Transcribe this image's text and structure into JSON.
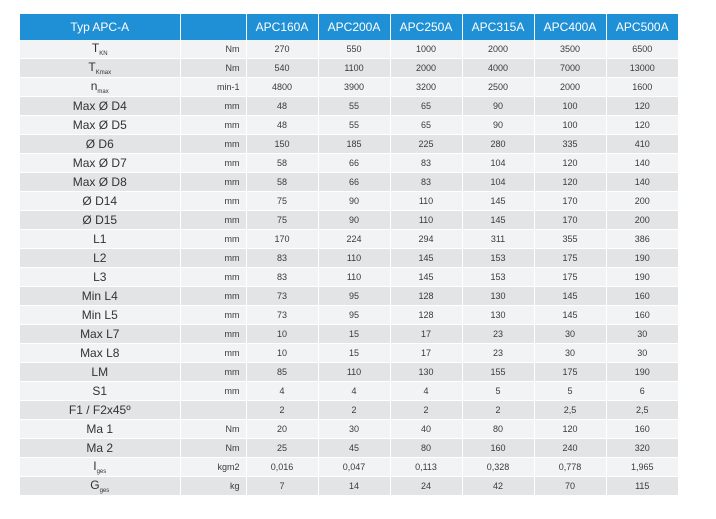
{
  "table": {
    "header": {
      "label": "Typ APC-A",
      "models": [
        "APC160A",
        "APC200A",
        "APC250A",
        "APC315A",
        "APC400A",
        "APC500A"
      ]
    },
    "rows": [
      {
        "main": "T",
        "sub": "KN",
        "unit": "Nm",
        "values": [
          "270",
          "550",
          "1000",
          "2000",
          "3500",
          "6500"
        ]
      },
      {
        "main": "T",
        "sub": "Kmax",
        "unit": "Nm",
        "values": [
          "540",
          "1100",
          "2000",
          "4000",
          "7000",
          "13000"
        ]
      },
      {
        "main": "n",
        "sub": "max",
        "unit": "min-1",
        "values": [
          "4800",
          "3900",
          "3200",
          "2500",
          "2000",
          "1600"
        ]
      },
      {
        "main": "Max Ø D4",
        "sub": "",
        "unit": "mm",
        "values": [
          "48",
          "55",
          "65",
          "90",
          "100",
          "120"
        ]
      },
      {
        "main": "Max Ø D5",
        "sub": "",
        "unit": "mm",
        "values": [
          "48",
          "55",
          "65",
          "90",
          "100",
          "120"
        ]
      },
      {
        "main": "Ø D6",
        "sub": "",
        "unit": "mm",
        "values": [
          "150",
          "185",
          "225",
          "280",
          "335",
          "410"
        ]
      },
      {
        "main": "Max Ø D7",
        "sub": "",
        "unit": "mm",
        "values": [
          "58",
          "66",
          "83",
          "104",
          "120",
          "140"
        ]
      },
      {
        "main": "Max Ø D8",
        "sub": "",
        "unit": "mm",
        "values": [
          "58",
          "66",
          "83",
          "104",
          "120",
          "140"
        ]
      },
      {
        "main": "Ø D14",
        "sub": "",
        "unit": "mm",
        "values": [
          "75",
          "90",
          "110",
          "145",
          "170",
          "200"
        ]
      },
      {
        "main": "Ø D15",
        "sub": "",
        "unit": "mm",
        "values": [
          "75",
          "90",
          "110",
          "145",
          "170",
          "200"
        ]
      },
      {
        "main": "L1",
        "sub": "",
        "unit": "mm",
        "values": [
          "170",
          "224",
          "294",
          "311",
          "355",
          "386"
        ]
      },
      {
        "main": "L2",
        "sub": "",
        "unit": "mm",
        "values": [
          "83",
          "110",
          "145",
          "153",
          "175",
          "190"
        ]
      },
      {
        "main": "L3",
        "sub": "",
        "unit": "mm",
        "values": [
          "83",
          "110",
          "145",
          "153",
          "175",
          "190"
        ]
      },
      {
        "main": "Min L4",
        "sub": "",
        "unit": "mm",
        "values": [
          "73",
          "95",
          "128",
          "130",
          "145",
          "160"
        ]
      },
      {
        "main": "Min L5",
        "sub": "",
        "unit": "mm",
        "values": [
          "73",
          "95",
          "128",
          "130",
          "145",
          "160"
        ]
      },
      {
        "main": "Max L7",
        "sub": "",
        "unit": "mm",
        "values": [
          "10",
          "15",
          "17",
          "23",
          "30",
          "30"
        ]
      },
      {
        "main": "Max L8",
        "sub": "",
        "unit": "mm",
        "values": [
          "10",
          "15",
          "17",
          "23",
          "30",
          "30"
        ]
      },
      {
        "main": "LM",
        "sub": "",
        "unit": "mm",
        "values": [
          "85",
          "110",
          "130",
          "155",
          "175",
          "190"
        ]
      },
      {
        "main": "S1",
        "sub": "",
        "unit": "mm",
        "values": [
          "4",
          "4",
          "4",
          "5",
          "5",
          "6"
        ]
      },
      {
        "main": "F1 / F2x45º",
        "sub": "",
        "unit": "",
        "values": [
          "2",
          "2",
          "2",
          "2",
          "2,5",
          "2,5"
        ]
      },
      {
        "main": "Ma 1",
        "sub": "",
        "unit": "Nm",
        "values": [
          "20",
          "30",
          "40",
          "80",
          "120",
          "160"
        ]
      },
      {
        "main": "Ma 2",
        "sub": "",
        "unit": "Nm",
        "values": [
          "25",
          "45",
          "80",
          "160",
          "240",
          "320"
        ]
      },
      {
        "main": "I",
        "sub": "ges",
        "unit": "kgm2",
        "values": [
          "0,016",
          "0,047",
          "0,113",
          "0,328",
          "0,778",
          "1,965"
        ]
      },
      {
        "main": "G",
        "sub": "ges",
        "unit": "kg",
        "values": [
          "7",
          "14",
          "24",
          "42",
          "70",
          "115"
        ]
      }
    ]
  }
}
